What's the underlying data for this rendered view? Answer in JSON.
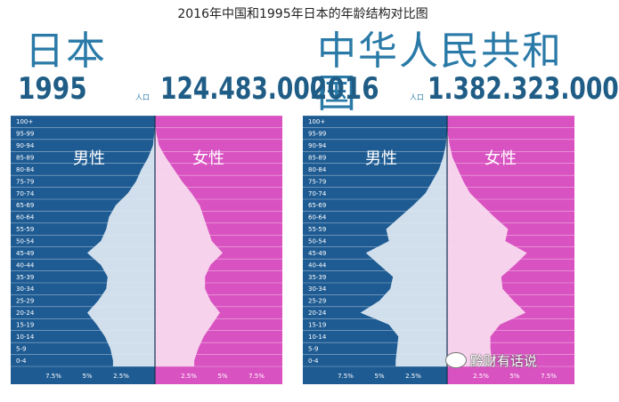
{
  "caption": "2016年中国和1995年日本的年龄结构对比图",
  "watermark": "黔财有话说",
  "colors": {
    "male_bg": "#1e5b92",
    "female_bg": "#d952c1",
    "male_fill": "#dfe9f3",
    "female_fill": "#f7dcef",
    "title_blue": "#2a7aa8"
  },
  "chart_data": [
    {
      "type": "bar",
      "orientation": "horizontal-population-pyramid",
      "country": "日本",
      "year": "1995",
      "population_label": "人口",
      "population": "124.483.000",
      "male_label": "男性",
      "female_label": "女性",
      "age_groups": [
        "100+",
        "95-99",
        "90-94",
        "85-89",
        "80-84",
        "75-79",
        "70-74",
        "65-69",
        "60-64",
        "55-59",
        "50-54",
        "45-49",
        "40-44",
        "35-39",
        "30-34",
        "25-29",
        "20-24",
        "15-19",
        "10-14",
        "5-9",
        "0-4"
      ],
      "series": [
        {
          "name": "男性",
          "unit": "%",
          "values": [
            0.0,
            0.05,
            0.15,
            0.5,
            1.0,
            1.4,
            2.0,
            2.9,
            3.4,
            3.6,
            4.0,
            5.0,
            4.0,
            3.5,
            3.6,
            4.2,
            5.0,
            4.3,
            3.7,
            3.3,
            3.1
          ]
        },
        {
          "name": "女性",
          "unit": "%",
          "values": [
            0.0,
            0.1,
            0.3,
            0.8,
            1.4,
            2.0,
            2.7,
            3.3,
            3.6,
            3.9,
            4.2,
            5.0,
            4.1,
            3.7,
            3.7,
            4.1,
            4.8,
            4.2,
            3.6,
            3.2,
            2.9
          ]
        }
      ],
      "x_ticks": [
        "7.5%",
        "5%",
        "2.5%",
        "2.5%",
        "5%",
        "7.5%"
      ],
      "xlim": [
        0,
        10
      ]
    },
    {
      "type": "bar",
      "orientation": "horizontal-population-pyramid",
      "country": "中华人民共和国",
      "year": "2016",
      "population_label": "人口",
      "population": "1.382.323.000",
      "male_label": "男性",
      "female_label": "女性",
      "age_groups": [
        "100+",
        "95-99",
        "90-94",
        "85-89",
        "80-84",
        "75-79",
        "70-74",
        "65-69",
        "60-64",
        "55-59",
        "50-54",
        "45-49",
        "40-44",
        "35-39",
        "30-34",
        "25-29",
        "20-24",
        "15-19",
        "10-14",
        "5-9",
        "0-4"
      ],
      "series": [
        {
          "name": "男性",
          "unit": "%",
          "values": [
            0.0,
            0.02,
            0.1,
            0.3,
            0.6,
            1.1,
            1.6,
            2.5,
            3.5,
            4.5,
            4.3,
            6.0,
            5.0,
            4.0,
            4.2,
            5.0,
            6.4,
            4.3,
            3.6,
            3.7,
            3.8
          ]
        },
        {
          "name": "女性",
          "unit": "%",
          "values": [
            0.0,
            0.05,
            0.2,
            0.4,
            0.8,
            1.2,
            1.7,
            2.6,
            3.5,
            4.5,
            4.3,
            5.9,
            5.0,
            4.0,
            4.1,
            4.9,
            5.8,
            3.9,
            3.2,
            3.2,
            3.3
          ]
        }
      ],
      "x_ticks": [
        "7.5%",
        "5%",
        "2.5%",
        "2.5%",
        "5%",
        "7.5%"
      ],
      "xlim": [
        0,
        10
      ]
    }
  ]
}
